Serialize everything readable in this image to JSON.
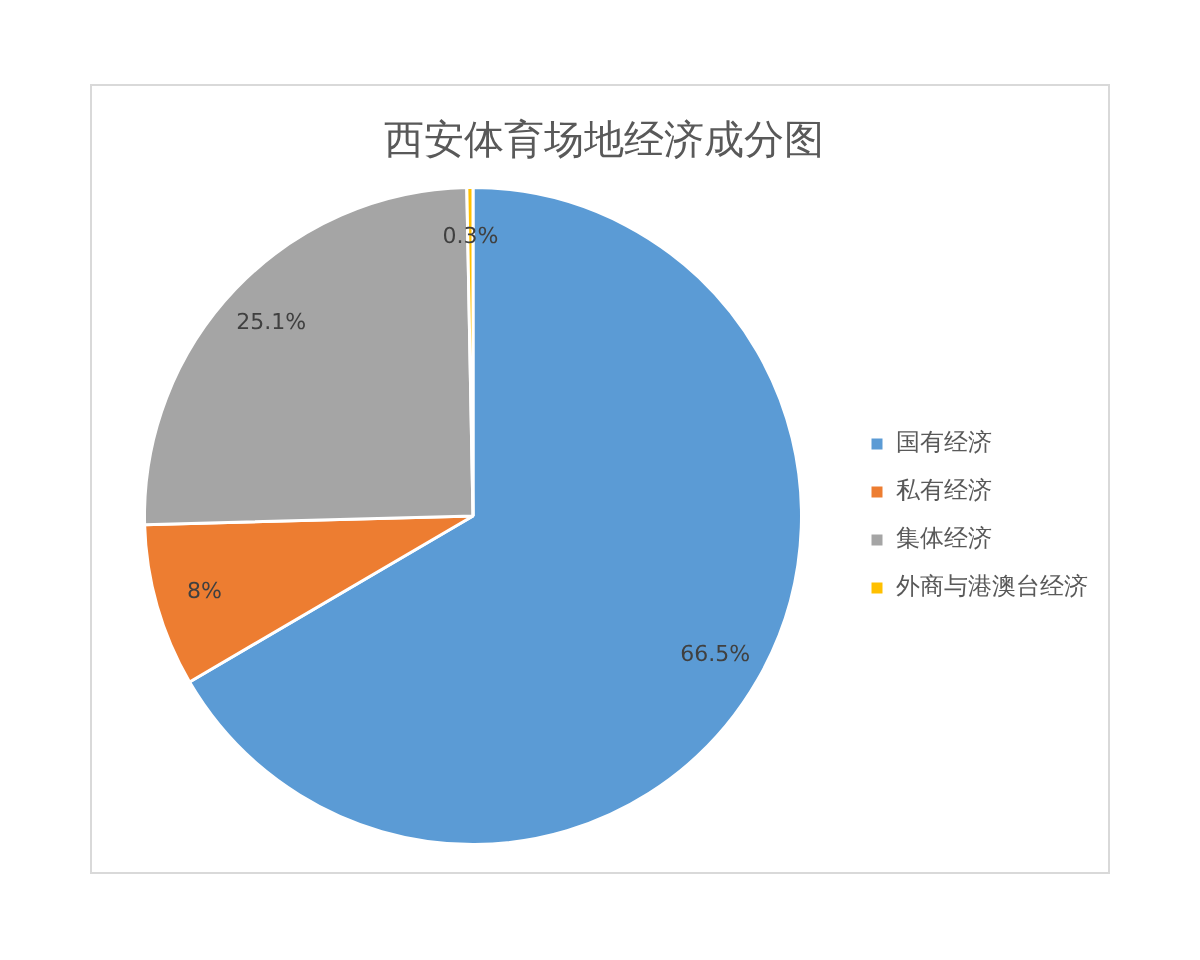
{
  "chart_data": {
    "type": "pie",
    "title": "西安体育场地经济成分图",
    "categories": [
      "国有经济",
      "私有经济",
      "集体经济",
      "外商与港澳台经济"
    ],
    "values": [
      66.5,
      8,
      25.1,
      0.3
    ],
    "value_labels": [
      "66.5%",
      "8%",
      "25.1%",
      "0.3%"
    ],
    "colors": [
      "#5b9bd5",
      "#ed7d31",
      "#a5a5a5",
      "#ffc000"
    ],
    "legend": "right"
  }
}
